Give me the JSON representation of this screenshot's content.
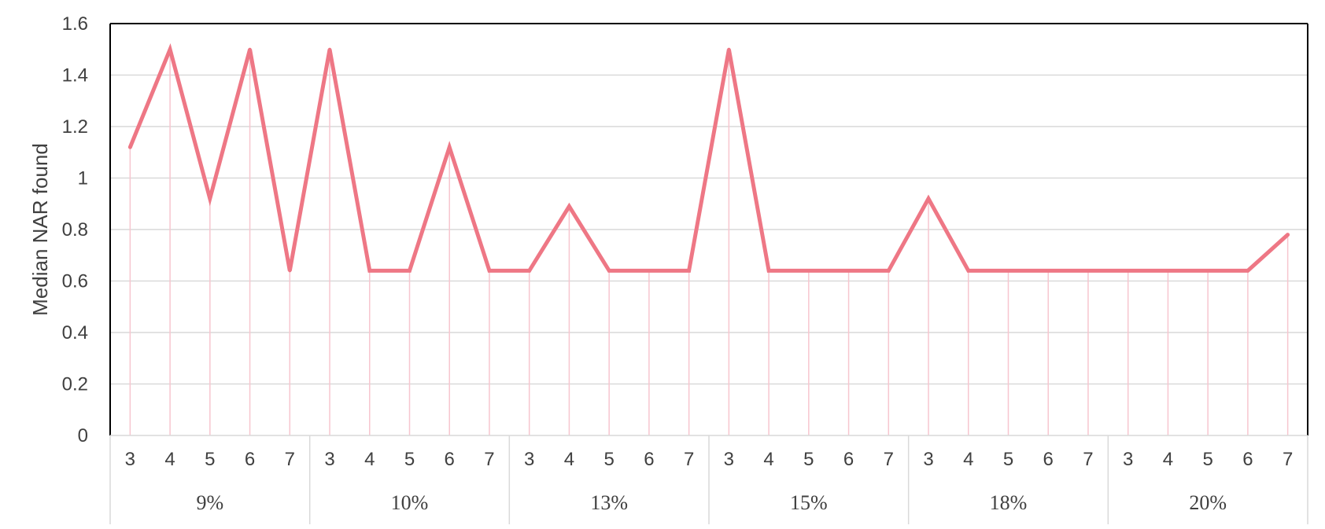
{
  "chart_data": {
    "type": "line",
    "title": "",
    "xlabel": "",
    "ylabel": "Median NAR found",
    "ylim": [
      0,
      1.6
    ],
    "yticks": [
      "0",
      "0.2",
      "0.4",
      "0.6",
      "0.8",
      "1",
      "1.2",
      "1.4",
      "1.6"
    ],
    "grid": true,
    "drop_lines": true,
    "line_color": "#ee7785",
    "drop_line_color": "#f7c6cf",
    "grid_color": "#d9d9d9",
    "groups": [
      {
        "label": "9%",
        "categories": [
          "3",
          "4",
          "5",
          "6",
          "7"
        ]
      },
      {
        "label": "10%",
        "categories": [
          "3",
          "4",
          "5",
          "6",
          "7"
        ]
      },
      {
        "label": "13%",
        "categories": [
          "3",
          "4",
          "5",
          "6",
          "7"
        ]
      },
      {
        "label": "15%",
        "categories": [
          "3",
          "4",
          "5",
          "6",
          "7"
        ]
      },
      {
        "label": "18%",
        "categories": [
          "3",
          "4",
          "5",
          "6",
          "7"
        ]
      },
      {
        "label": "20%",
        "categories": [
          "3",
          "4",
          "5",
          "6",
          "7"
        ]
      }
    ],
    "series": [
      {
        "values": [
          1.12,
          1.5,
          0.92,
          1.5,
          0.64,
          1.5,
          0.64,
          0.64,
          1.12,
          0.64,
          0.64,
          0.89,
          0.64,
          0.64,
          0.64,
          1.5,
          0.64,
          0.64,
          0.64,
          0.64,
          0.92,
          0.64,
          0.64,
          0.64,
          0.64,
          0.64,
          0.64,
          0.64,
          0.64,
          0.78
        ]
      }
    ]
  }
}
